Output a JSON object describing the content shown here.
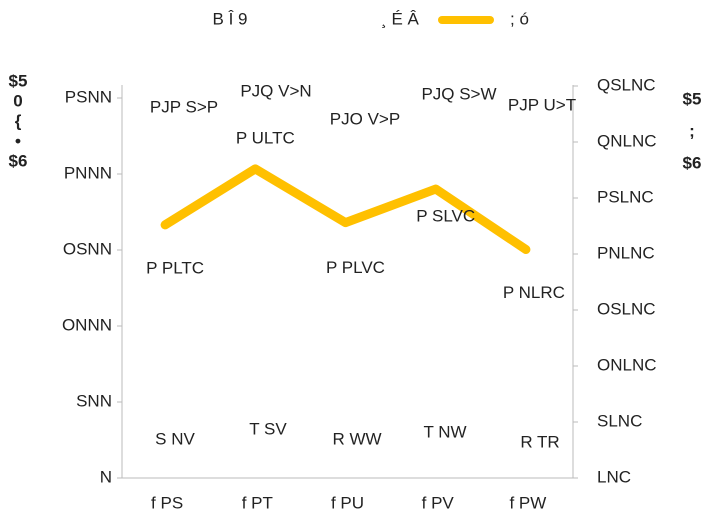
{
  "chart_data": {
    "type": "line",
    "legend": [
      "B Î 9",
      "¸ É Â"
    ],
    "y_title": [
      "$5",
      "0",
      "{",
      "•",
      "$6"
    ],
    "y2_title": [
      "$5",
      ";",
      "$6"
    ],
    "categories": [
      "f PS",
      "f PT",
      "f PU",
      "f PV",
      "f PW"
    ],
    "ylim": [
      0,
      2500
    ],
    "yticks": [
      {
        "value": 0,
        "label": "N"
      },
      {
        "value": 500,
        "label": "SNN"
      },
      {
        "value": 1000,
        "label": "ONNN"
      },
      {
        "value": 1500,
        "label": "OSNN"
      },
      {
        "value": 2000,
        "label": "PNNN"
      },
      {
        "value": 2500,
        "label": "PSNN"
      }
    ],
    "y2lim": [
      0,
      35
    ],
    "y2ticks": [
      {
        "value": 0,
        "label": "LNC"
      },
      {
        "value": 5,
        "label": "SLNC"
      },
      {
        "value": 10,
        "label": "ONLNC"
      },
      {
        "value": 15,
        "label": "OSLNC"
      },
      {
        "value": 20,
        "label": "PNLNC"
      },
      {
        "value": 25,
        "label": "PSLNC"
      },
      {
        "value": 30,
        "label": "QNLNC"
      },
      {
        "value": 35,
        "label": "QSLNC"
      }
    ],
    "series": [
      {
        "name": "; ó",
        "color": "#FFC000",
        "axis": "y2",
        "values": [
          22.6,
          27.6,
          22.8,
          25.8,
          20.4
        ],
        "value_labels": [
          "P PLTC",
          "P ULTC",
          "P PLVC",
          "P SLVC",
          "P NLRC"
        ]
      }
    ],
    "annotations": [
      "PJP S>P",
      "PJQ V>N",
      "PJO V>P",
      "PJQ S>W",
      "PJP U>T",
      "S NV",
      "T SV",
      "R WW",
      "T NW",
      "R TR"
    ]
  }
}
